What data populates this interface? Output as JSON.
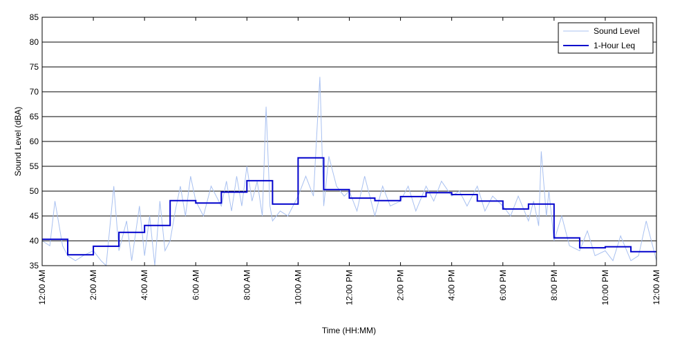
{
  "chart_data": {
    "type": "line",
    "title": "",
    "xlabel": "Time (HH:MM)",
    "ylabel": "Sound Level (dBA)",
    "ylim": [
      35,
      85
    ],
    "xlim_hours": [
      0,
      24
    ],
    "yticks": [
      35,
      40,
      45,
      50,
      55,
      60,
      65,
      70,
      75,
      80,
      85
    ],
    "xtick_hours": [
      0,
      2,
      4,
      6,
      8,
      10,
      12,
      14,
      16,
      18,
      20,
      22,
      24
    ],
    "xtick_labels": [
      "12:00 AM",
      "2:00 AM",
      "4:00 AM",
      "6:00 AM",
      "8:00 AM",
      "10:00 AM",
      "12:00 PM",
      "2:00 PM",
      "4:00 PM",
      "6:00 PM",
      "8:00 PM",
      "10:00 PM",
      "12:00 AM"
    ],
    "grid": "horizontal",
    "legend_position": "top-right",
    "series": [
      {
        "name": "Sound Level",
        "color": "#a8c0f0",
        "style": "thin-line",
        "x_hours": [
          0,
          0.3,
          0.5,
          0.8,
          1.0,
          1.3,
          1.6,
          2.0,
          2.3,
          2.5,
          2.8,
          3.0,
          3.3,
          3.5,
          3.8,
          4.0,
          4.2,
          4.4,
          4.6,
          4.8,
          5.0,
          5.2,
          5.4,
          5.6,
          5.8,
          6.0,
          6.3,
          6.6,
          7.0,
          7.2,
          7.4,
          7.6,
          7.8,
          8.0,
          8.2,
          8.4,
          8.6,
          8.75,
          8.9,
          9.0,
          9.3,
          9.6,
          10.0,
          10.3,
          10.6,
          10.85,
          11.0,
          11.2,
          11.5,
          11.8,
          12.0,
          12.3,
          12.6,
          13.0,
          13.3,
          13.6,
          14.0,
          14.3,
          14.6,
          15.0,
          15.3,
          15.6,
          16.0,
          16.3,
          16.6,
          17.0,
          17.3,
          17.6,
          18.0,
          18.3,
          18.6,
          19.0,
          19.2,
          19.4,
          19.5,
          19.7,
          19.8,
          20.0,
          20.3,
          20.6,
          21.0,
          21.3,
          21.6,
          22.0,
          22.3,
          22.6,
          23.0,
          23.3,
          23.6,
          24.0
        ],
        "y": [
          40,
          39,
          48,
          39,
          37,
          36,
          37,
          38,
          36,
          35,
          51,
          38,
          44,
          36,
          47,
          37,
          45,
          35,
          48,
          38,
          40,
          46,
          51,
          45,
          53,
          48,
          45,
          51,
          47,
          52,
          46,
          53,
          47,
          55,
          48,
          52,
          45,
          67,
          47,
          44,
          46,
          45,
          49,
          53,
          49,
          73,
          47,
          57,
          51,
          49,
          50,
          46,
          53,
          45,
          51,
          47,
          48,
          51,
          46,
          51,
          48,
          52,
          49,
          50,
          47,
          51,
          46,
          49,
          47,
          45,
          49,
          44,
          48,
          43,
          58,
          45,
          50,
          40,
          45,
          39,
          38,
          42,
          37,
          38,
          36,
          41,
          36,
          37,
          44,
          36
        ]
      },
      {
        "name": "1-Hour Leq",
        "color": "#0000cc",
        "style": "step",
        "values": [
          40.3,
          37.2,
          38.9,
          41.7,
          43.1,
          48.1,
          47.6,
          49.8,
          52.1,
          47.4,
          56.7,
          50.3,
          48.6,
          48.1,
          48.9,
          49.7,
          49.3,
          48.0,
          46.4,
          47.4,
          40.6,
          38.6,
          38.8,
          37.8
        ]
      }
    ]
  },
  "colors": {
    "background": "#ffffff",
    "axes": "#000000",
    "grid": "#000000"
  }
}
